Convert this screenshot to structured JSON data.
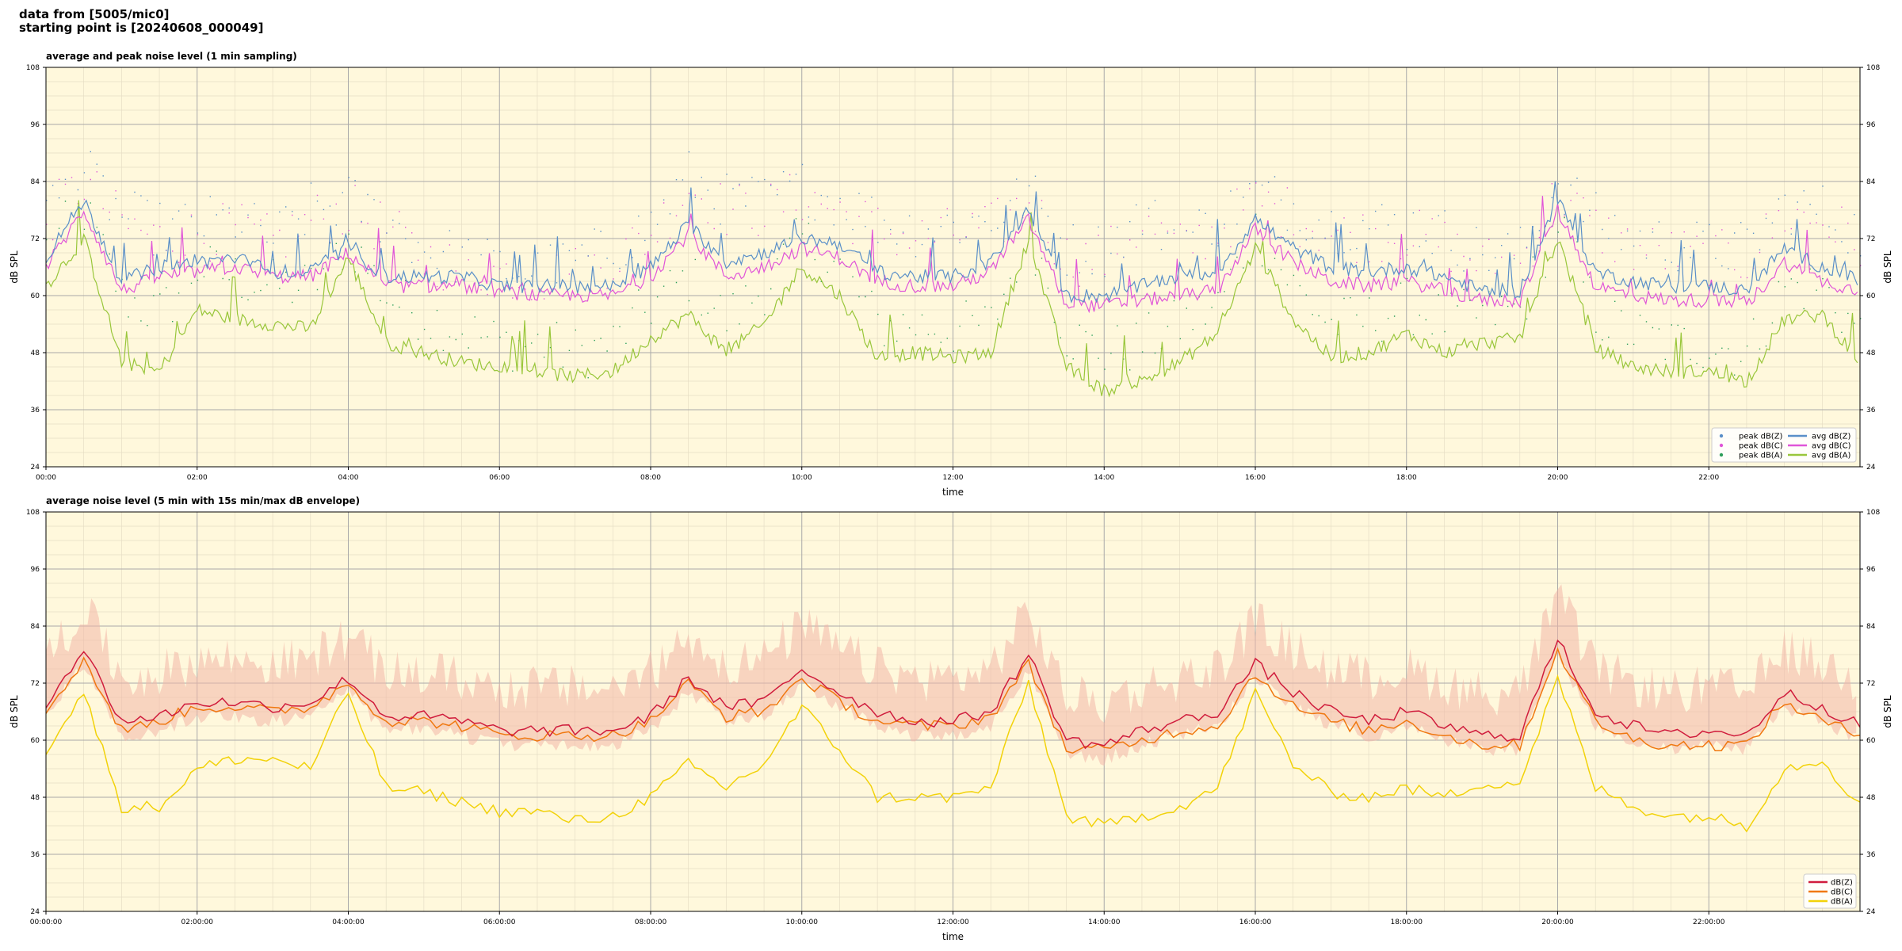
{
  "header": {
    "line1": "data from [5005/mic0]",
    "line2": "starting point is [20240608_000049]"
  },
  "colors": {
    "plot_bg": "#fff8dc",
    "z": "#5a8fc8",
    "c": "#e055d8",
    "a": "#99c63a",
    "peak_a": "#2e9e5a",
    "z2": "#d01c3c",
    "c2": "#f07810",
    "a2": "#f2d20a",
    "envelope": "#f3b6a8"
  },
  "chart_data": [
    {
      "type": "line",
      "title": "average and peak noise level (1 min sampling)",
      "xlabel": "time",
      "ylabel": "dB SPL",
      "ylim": [
        24,
        108
      ],
      "xlim_hours": [
        0,
        24
      ],
      "yticks": [
        "24",
        "36",
        "48",
        "60",
        "72",
        "84",
        "96",
        "108"
      ],
      "xticks": [
        "00:00",
        "02:00",
        "04:00",
        "06:00",
        "08:00",
        "10:00",
        "12:00",
        "14:00",
        "16:00",
        "18:00",
        "20:00",
        "22:00"
      ],
      "grid": true,
      "legend_position": "lower-right",
      "legend": [
        "peak dB(Z)",
        "peak dB(C)",
        "peak dB(A)",
        "avg dB(Z)",
        "avg dB(C)",
        "avg dB(A)"
      ],
      "hours": [
        0,
        0.5,
        1,
        1.5,
        2,
        2.5,
        3,
        3.5,
        4,
        4.5,
        5,
        5.5,
        6,
        6.5,
        7,
        7.5,
        8,
        8.5,
        9,
        9.5,
        10,
        10.5,
        11,
        11.5,
        12,
        12.5,
        13,
        13.5,
        14,
        14.5,
        15,
        15.5,
        16,
        16.5,
        17,
        17.5,
        18,
        18.5,
        19,
        19.5,
        20,
        20.5,
        21,
        21.5,
        22,
        22.5,
        23,
        23.5,
        24
      ],
      "series": [
        {
          "name": "avg dB(Z)",
          "values": [
            68,
            80,
            63,
            66,
            67,
            68,
            65,
            65,
            70,
            64,
            64,
            64,
            62,
            62,
            62,
            62,
            66,
            75,
            67,
            69,
            72,
            71,
            65,
            64,
            64,
            67,
            78,
            60,
            60,
            62,
            64,
            65,
            76,
            70,
            66,
            65,
            66,
            64,
            61,
            61,
            80,
            65,
            63,
            62,
            62,
            61,
            70,
            66,
            63
          ]
        },
        {
          "name": "avg dB(C)",
          "values": [
            66,
            78,
            61,
            64,
            65,
            66,
            64,
            64,
            69,
            62,
            62,
            62,
            61,
            60,
            60,
            60,
            64,
            73,
            64,
            66,
            70,
            68,
            63,
            62,
            62,
            65,
            76,
            58,
            58,
            59,
            60,
            61,
            74,
            67,
            63,
            62,
            63,
            61,
            59,
            59,
            78,
            62,
            60,
            59,
            59,
            58,
            67,
            63,
            61
          ]
        },
        {
          "name": "avg dB(A)",
          "values": [
            62,
            72,
            46,
            44,
            57,
            55,
            54,
            53,
            68,
            50,
            48,
            46,
            45,
            44,
            43,
            44,
            51,
            56,
            48,
            54,
            66,
            60,
            47,
            48,
            47,
            48,
            72,
            45,
            40,
            42,
            46,
            52,
            70,
            55,
            47,
            48,
            52,
            48,
            50,
            51,
            72,
            49,
            45,
            44,
            44,
            42,
            55,
            56,
            46
          ]
        },
        {
          "name": "peak dB(Z)",
          "values": [
            78,
            86,
            77,
            74,
            75,
            76,
            72,
            78,
            80,
            76,
            70,
            68,
            66,
            65,
            67,
            70,
            75,
            85,
            80,
            80,
            83,
            80,
            76,
            74,
            75,
            76,
            82,
            70,
            70,
            77,
            72,
            76,
            82,
            79,
            75,
            75,
            75,
            73,
            69,
            69,
            84,
            76,
            72,
            71,
            70,
            70,
            79,
            78,
            73
          ]
        },
        {
          "name": "peak dB(C)",
          "values": [
            76,
            84,
            75,
            72,
            73,
            74,
            71,
            76,
            78,
            74,
            68,
            66,
            65,
            64,
            65,
            68,
            73,
            83,
            78,
            78,
            81,
            78,
            74,
            72,
            73,
            74,
            80,
            68,
            68,
            75,
            70,
            74,
            80,
            77,
            73,
            73,
            73,
            71,
            67,
            67,
            82,
            74,
            70,
            69,
            68,
            68,
            77,
            76,
            71
          ]
        },
        {
          "name": "peak dB(A)",
          "values": [
            70,
            78,
            60,
            56,
            66,
            64,
            62,
            62,
            72,
            60,
            56,
            53,
            50,
            50,
            48,
            50,
            58,
            64,
            55,
            62,
            72,
            66,
            54,
            54,
            53,
            54,
            74,
            52,
            48,
            50,
            54,
            58,
            74,
            62,
            54,
            55,
            58,
            55,
            56,
            57,
            76,
            56,
            52,
            50,
            50,
            48,
            62,
            62,
            52
          ]
        }
      ]
    },
    {
      "type": "line",
      "title": "average noise level (5 min with 15s min/max dB envelope)",
      "xlabel": "time",
      "ylabel": "dB SPL",
      "ylim": [
        24,
        108
      ],
      "xlim_hours": [
        0,
        24
      ],
      "yticks": [
        "24",
        "36",
        "48",
        "60",
        "72",
        "84",
        "96",
        "108"
      ],
      "xticks": [
        "00:00:00",
        "02:00:00",
        "04:00:00",
        "06:00:00",
        "08:00:00",
        "10:00:00",
        "12:00:00",
        "14:00:00",
        "16:00:00",
        "18:00:00",
        "20:00:00",
        "22:00:00"
      ],
      "grid": true,
      "legend_position": "lower-right",
      "legend": [
        "dB(Z)",
        "dB(C)",
        "dB(A)"
      ],
      "hours": [
        0,
        0.5,
        1,
        1.5,
        2,
        2.5,
        3,
        3.5,
        4,
        4.5,
        5,
        5.5,
        6,
        6.5,
        7,
        7.5,
        8,
        8.5,
        9,
        9.5,
        10,
        10.5,
        11,
        11.5,
        12,
        12.5,
        13,
        13.5,
        14,
        14.5,
        15,
        15.5,
        16,
        16.5,
        17,
        17.5,
        18,
        18.5,
        19,
        19.5,
        20,
        20.5,
        21,
        21.5,
        22,
        22.5,
        23,
        23.5,
        24
      ],
      "series": [
        {
          "name": "dB(Z)",
          "values": [
            68,
            79,
            64,
            65,
            68,
            68,
            67,
            68,
            73,
            65,
            65,
            64,
            62,
            62,
            62,
            62,
            65,
            73,
            67,
            68,
            75,
            70,
            66,
            64,
            64,
            66,
            78,
            60,
            59,
            62,
            64,
            66,
            76,
            70,
            66,
            64,
            66,
            63,
            61,
            61,
            81,
            66,
            63,
            61,
            62,
            61,
            70,
            67,
            63
          ]
        },
        {
          "name": "dB(C)",
          "values": [
            66,
            77,
            62,
            64,
            67,
            67,
            66,
            67,
            72,
            64,
            64,
            63,
            61,
            61,
            61,
            61,
            64,
            72,
            65,
            66,
            73,
            68,
            64,
            63,
            63,
            65,
            76,
            58,
            58,
            60,
            62,
            63,
            74,
            67,
            64,
            62,
            64,
            61,
            59,
            59,
            79,
            64,
            60,
            59,
            59,
            59,
            68,
            64,
            61
          ]
        },
        {
          "name": "dB(A)",
          "values": [
            58,
            70,
            46,
            46,
            54,
            56,
            56,
            54,
            70,
            50,
            49,
            47,
            45,
            45,
            43,
            44,
            48,
            55,
            50,
            55,
            67,
            58,
            48,
            48,
            48,
            50,
            72,
            44,
            42,
            44,
            46,
            50,
            70,
            55,
            49,
            48,
            50,
            48,
            51,
            51,
            73,
            50,
            46,
            44,
            44,
            42,
            54,
            56,
            46
          ]
        }
      ],
      "envelope": {
        "name": "15s min/max",
        "upper_offset": 10,
        "lower_offset": -3
      }
    }
  ]
}
